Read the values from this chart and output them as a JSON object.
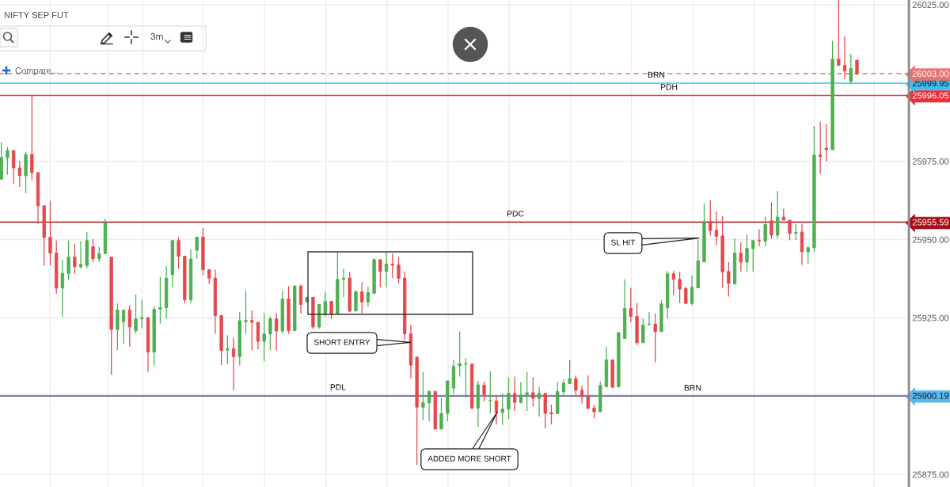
{
  "chart_data": {
    "type": "candlestick",
    "title": "NIFTY SEP FUT",
    "categories": [
      null,
      null,
      null,
      null,
      null,
      null,
      null,
      null,
      null,
      null,
      null,
      null,
      null,
      null,
      null,
      null,
      null,
      null,
      null,
      null,
      null,
      null,
      null,
      null,
      null,
      null,
      null,
      null,
      null,
      null,
      null,
      null,
      null,
      null,
      null,
      null,
      null,
      null,
      null,
      null,
      null,
      null,
      null,
      null,
      null,
      null,
      null,
      null,
      null,
      null,
      null,
      null,
      null,
      null,
      null,
      null,
      null,
      null,
      null,
      null,
      null,
      null,
      null,
      null,
      null,
      null,
      null,
      null,
      null,
      null,
      null,
      null,
      null,
      null,
      null,
      null,
      null,
      null,
      null,
      null,
      null,
      null,
      null,
      null,
      null,
      null,
      null,
      null,
      null,
      null,
      null,
      null,
      null,
      null,
      null,
      null,
      null,
      null,
      null,
      null,
      null,
      null,
      null,
      null,
      null,
      null,
      null,
      null,
      null,
      null,
      null,
      null,
      null,
      null,
      null,
      null,
      null,
      null,
      null,
      null,
      null,
      null,
      null,
      null,
      null,
      null,
      null,
      null,
      null,
      null,
      null,
      null,
      null,
      null,
      null,
      null,
      null,
      null,
      null,
      null,
      null,
      null,
      null,
      null,
      null,
      null,
      null,
      null,
      null
    ],
    "ohlc": [
      [
        25969.3,
        25981.1,
        25969.3,
        25976.2
      ],
      [
        25976.2,
        25979.5,
        25970.7,
        25978.4
      ],
      [
        25978.4,
        25978.8,
        25967.8,
        25972.9
      ],
      [
        25972.9,
        25975.2,
        25966.8,
        25970.4
      ],
      [
        25970.4,
        25978.0,
        25964.8,
        25977.2
      ],
      [
        25977.2,
        25996.0,
        25968.9,
        25971.4
      ],
      [
        25971.4,
        25971.4,
        25955.0,
        25960.8
      ],
      [
        25960.8,
        25960.8,
        25941.7,
        25950.7
      ],
      [
        25950.7,
        25962.4,
        25941.7,
        25945.7
      ],
      [
        25945.7,
        25949.7,
        25932.7,
        25934.5
      ],
      [
        25934.5,
        25943.4,
        25925.3,
        25939.2
      ],
      [
        25939.2,
        25949.7,
        25937.1,
        25944.4
      ],
      [
        25944.4,
        25948.7,
        25939.0,
        25941.3
      ],
      [
        25941.3,
        25949.5,
        25940.8,
        25942.1
      ],
      [
        25941.7,
        25952.5,
        25940.8,
        25949.7
      ],
      [
        25947.7,
        25950.1,
        25942.8,
        25943.9
      ],
      [
        25943.9,
        25947.7,
        25942.8,
        25945.5
      ],
      [
        25945.5,
        25956.7,
        25945.5,
        25955.4
      ],
      [
        25944.4,
        25944.4,
        25906.8,
        25921.3
      ],
      [
        25921.3,
        25929.6,
        25914.7,
        25927.5
      ],
      [
        25923.8,
        25927.5,
        25916.7,
        25927.5
      ],
      [
        25927.5,
        25929.1,
        25915.8,
        25922.1
      ],
      [
        25920.9,
        25932.5,
        25920.0,
        25924.7
      ],
      [
        25924.7,
        25930.8,
        25921.7,
        25925.1
      ],
      [
        25925.1,
        25925.1,
        25907.8,
        25914.1
      ],
      [
        25914.1,
        25928.7,
        25909.8,
        25927.7
      ],
      [
        25927.8,
        25938.1,
        25923.2,
        25928.3
      ],
      [
        25928.3,
        25941.5,
        25924.8,
        25937.7
      ],
      [
        25938.8,
        25949.7,
        25934.8,
        25949.7
      ],
      [
        25949.7,
        25950.8,
        25940.7,
        25944.7
      ],
      [
        25944.7,
        25944.7,
        25929.7,
        25930.8
      ],
      [
        25930.8,
        25946.8,
        25929.7,
        25943.8
      ],
      [
        25946.6,
        25950.8,
        25943.9,
        25950.8
      ],
      [
        25950.8,
        25953.7,
        25938.7,
        25940.4
      ],
      [
        25940.4,
        25940.4,
        25935.8,
        25937.7
      ],
      [
        25937.7,
        25940.4,
        25919.9,
        25925.7
      ],
      [
        25925.7,
        25925.9,
        25909.9,
        25914.6
      ],
      [
        25914.7,
        25919.5,
        25910.1,
        25915.2
      ],
      [
        25915.2,
        25918.6,
        25901.9,
        25912.6
      ],
      [
        25912.6,
        25926.8,
        25909.8,
        25924.1
      ],
      [
        25923.8,
        25933.7,
        25919.9,
        25924.2
      ],
      [
        25924.2,
        25927.4,
        25914.7,
        25923.6
      ],
      [
        25923.6,
        25923.6,
        25915.0,
        25917.5
      ],
      [
        25917.5,
        25926.6,
        25911.2,
        25919.9
      ],
      [
        25919.9,
        25925.5,
        25914.7,
        25924.7
      ],
      [
        25924.7,
        25926.6,
        25914.7,
        25920.8
      ],
      [
        25920.8,
        25933.7,
        25919.9,
        25931.0
      ],
      [
        25931.0,
        25935.2,
        25919.9,
        25920.9
      ],
      [
        25920.9,
        25935.2,
        25920.9,
        25935.2
      ],
      [
        25935.2,
        25935.6,
        25926.4,
        25929.3
      ],
      [
        25930.1,
        25931.6,
        25930.1,
        25931.6
      ],
      [
        25931.6,
        25931.6,
        25921.5,
        25922.1
      ],
      [
        25922.1,
        25929.3,
        25921.5,
        25929.3
      ],
      [
        25926.1,
        25933.3,
        25925.5,
        25930.3
      ],
      [
        25930.3,
        25930.3,
        25924.7,
        25926.2
      ],
      [
        25926.4,
        25946.1,
        25926.4,
        25937.3
      ],
      [
        25937.3,
        25940.7,
        25931.6,
        25937.7
      ],
      [
        25937.7,
        25939.8,
        25926.8,
        25927.2
      ],
      [
        25927.2,
        25933.9,
        25927.2,
        25933.3
      ],
      [
        25933.3,
        25936.5,
        25926.5,
        25930.1
      ],
      [
        25930.1,
        25934.9,
        25928.5,
        25933.1
      ],
      [
        25932.8,
        25944.0,
        25932.8,
        25943.6
      ],
      [
        25943.6,
        25943.6,
        25934.8,
        25939.8
      ],
      [
        25939.8,
        25946.1,
        25934.8,
        25942.2
      ],
      [
        25942.2,
        25945.5,
        25937.7,
        25941.8
      ],
      [
        25941.9,
        25944.4,
        25936.0,
        25937.7
      ],
      [
        25937.7,
        25939.8,
        25917.9,
        25919.9
      ],
      [
        25919.9,
        25922.8,
        25905.7,
        25909.9
      ],
      [
        25912.5,
        25912.5,
        25878.0,
        25896.5
      ],
      [
        25896.5,
        25907.7,
        25892.3,
        25897.9
      ],
      [
        25897.9,
        25901.9,
        25892.0,
        25901.5
      ],
      [
        25901.5,
        25901.5,
        25889.5,
        25889.5
      ],
      [
        25889.5,
        25899.4,
        25889.5,
        25894.5
      ],
      [
        25894.5,
        25904.9,
        25892.0,
        25904.9
      ],
      [
        25902.6,
        25911.6,
        25900.7,
        25909.5
      ],
      [
        25909.7,
        25920.6,
        25906.3,
        25910.4
      ],
      [
        25910.2,
        25912.2,
        25899.6,
        25910.4
      ],
      [
        25910.3,
        25910.3,
        25895.9,
        25896.2
      ],
      [
        25896.2,
        25904.9,
        25890.2,
        25903.6
      ],
      [
        25903.5,
        25904.7,
        25898.3,
        25900.5
      ],
      [
        25898.4,
        25908.0,
        25894.5,
        25898.6
      ],
      [
        25898.5,
        25900.1,
        25891.0,
        25894.8
      ],
      [
        25894.8,
        25900.7,
        25890.8,
        25895.9
      ],
      [
        25895.9,
        25906.0,
        25892.7,
        25900.9
      ],
      [
        25900.9,
        25906.3,
        25895.2,
        25898.0
      ],
      [
        25898.0,
        25904.5,
        25897.7,
        25900.4
      ],
      [
        25900.4,
        25907.7,
        25895.2,
        25901.1
      ],
      [
        25901.1,
        25906.0,
        25896.7,
        25899.3
      ],
      [
        25899.3,
        25903.0,
        25893.5,
        25900.9
      ],
      [
        25900.9,
        25900.9,
        25889.7,
        25894.5
      ],
      [
        25894.7,
        25897.3,
        25891.0,
        25894.3
      ],
      [
        25894.4,
        25904.5,
        25894.4,
        25901.5
      ],
      [
        25901.4,
        25905.3,
        25900.3,
        25904.2
      ],
      [
        25904.0,
        25911.6,
        25904.0,
        25905.6
      ],
      [
        25905.6,
        25906.6,
        25900.3,
        25901.9
      ],
      [
        25901.9,
        25903.5,
        25897.7,
        25899.8
      ],
      [
        25899.8,
        25906.6,
        25895.9,
        25896.1
      ],
      [
        25896.2,
        25897.3,
        25892.9,
        25895.0
      ],
      [
        25895.0,
        25904.6,
        25895.0,
        25903.4
      ],
      [
        25903.0,
        25915.8,
        25903.0,
        25911.6
      ],
      [
        25911.6,
        25911.6,
        25902.8,
        25902.8
      ],
      [
        25903.0,
        25920.3,
        25903.0,
        25920.3
      ],
      [
        25918.4,
        25937.3,
        25918.4,
        25928.0
      ],
      [
        25928.0,
        25934.6,
        25923.6,
        25925.5
      ],
      [
        25925.5,
        25929.7,
        25916.3,
        25917.1
      ],
      [
        25917.1,
        25924.7,
        25917.1,
        25922.7
      ],
      [
        25922.8,
        25926.8,
        25922.8,
        25923.0
      ],
      [
        25923.0,
        25926.4,
        25910.8,
        25920.6
      ],
      [
        25920.6,
        25930.7,
        25920.6,
        25929.5
      ],
      [
        25928.2,
        25940.0,
        25924.8,
        25939.1
      ],
      [
        25939.1,
        25940.0,
        25932.1,
        25937.3
      ],
      [
        25937.3,
        25939.7,
        25929.7,
        25934.2
      ],
      [
        25934.4,
        25934.9,
        25929.6,
        25929.6
      ],
      [
        25929.6,
        25938.6,
        25929.0,
        25934.8
      ],
      [
        25934.6,
        25949.9,
        25934.6,
        25943.2
      ],
      [
        25942.9,
        25961.5,
        25942.9,
        25955.8
      ],
      [
        25955.8,
        25962.5,
        25951.2,
        25952.9
      ],
      [
        25953.0,
        25959.0,
        25948.2,
        25951.0
      ],
      [
        25951.2,
        25957.5,
        25934.6,
        25939.7
      ],
      [
        25939.8,
        25942.8,
        25931.8,
        25936.0
      ],
      [
        25935.8,
        25950.3,
        25935.8,
        25945.7
      ],
      [
        25945.7,
        25949.1,
        25939.8,
        25942.8
      ],
      [
        25942.8,
        25951.6,
        25939.8,
        25947.2
      ],
      [
        25947.1,
        25949.7,
        25939.8,
        25949.7
      ],
      [
        25949.8,
        25953.3,
        25947.8,
        25949.6
      ],
      [
        25949.5,
        25957.3,
        25947.8,
        25954.8
      ],
      [
        25956.0,
        25961.9,
        25950.3,
        25951.4
      ],
      [
        25951.4,
        25965.5,
        25950.3,
        25957.2
      ],
      [
        25957.2,
        25959.8,
        25956.2,
        25956.2
      ],
      [
        25956.2,
        25956.2,
        25949.8,
        25952.0
      ],
      [
        25952.0,
        25955.0,
        25949.9,
        25952.3
      ],
      [
        25952.4,
        25955.0,
        25941.9,
        25946.1
      ],
      [
        25946.1,
        25947.8,
        25942.3,
        25947.4
      ],
      [
        25947.4,
        25986.3,
        25946.1,
        25977.0
      ],
      [
        25977.0,
        25987.6,
        25971.0,
        25976.5
      ],
      [
        25979.2,
        25986.8,
        25975.0,
        25978.7
      ],
      [
        25978.7,
        26013.5,
        25978.7,
        26007.6
      ],
      [
        26007.6,
        26026.5,
        26005.6,
        26005.6
      ],
      [
        26005.6,
        26014.9,
        26001.3,
        26003.8
      ],
      [
        26000.6,
        26009.4,
        25999.8,
        26004.6
      ],
      [
        26007.3,
        26007.3,
        26002.5,
        26003.0
      ],
      null,
      null,
      null,
      null,
      null,
      null,
      null,
      null
    ],
    "colors": [
      "#4caf50",
      "#4caf50",
      "#e5484d",
      "#e5484d",
      "#4caf50",
      "#e5484d",
      "#e5484d",
      "#e5484d",
      "#e5484d",
      "#e5484d",
      "#4caf50",
      "#4caf50",
      "#e5484d",
      "#4caf50",
      "#4caf50",
      "#e5484d",
      "#4caf50",
      "#4caf50",
      "#e5484d",
      "#4caf50",
      "#4caf50",
      "#e5484d",
      "#4caf50",
      "#4caf50",
      "#e5484d",
      "#4caf50",
      "#4caf50",
      "#4caf50",
      "#4caf50",
      "#e5484d",
      "#e5484d",
      "#4caf50",
      "#4caf50",
      "#e5484d",
      "#e5484d",
      "#e5484d",
      "#e5484d",
      "#4caf50",
      "#e5484d",
      "#4caf50",
      "#4caf50",
      "#e5484d",
      "#e5484d",
      "#4caf50",
      "#4caf50",
      "#e5484d",
      "#4caf50",
      "#e5484d",
      "#4caf50",
      "#e5484d",
      "#4caf50",
      "#e5484d",
      "#4caf50",
      "#4caf50",
      "#e5484d",
      "#4caf50",
      "#4caf50",
      "#e5484d",
      "#4caf50",
      "#e5484d",
      "#4caf50",
      "#4caf50",
      "#e5484d",
      "#4caf50",
      "#e5484d",
      "#e5484d",
      "#e5484d",
      "#e5484d",
      "#e5484d",
      "#4caf50",
      "#4caf50",
      "#e5484d",
      "#4caf50",
      "#4caf50",
      "#4caf50",
      "#4caf50",
      "#4caf50",
      "#e5484d",
      "#4caf50",
      "#e5484d",
      "#4caf50",
      "#e5484d",
      "#4caf50",
      "#4caf50",
      "#e5484d",
      "#4caf50",
      "#4caf50",
      "#e5484d",
      "#4caf50",
      "#e5484d",
      "#e5484d",
      "#4caf50",
      "#4caf50",
      "#4caf50",
      "#e5484d",
      "#e5484d",
      "#e5484d",
      "#e5484d",
      "#4caf50",
      "#4caf50",
      "#e5484d",
      "#4caf50",
      "#4caf50",
      "#e5484d",
      "#e5484d",
      "#4caf50",
      "#4caf50",
      "#e5484d",
      "#4caf50",
      "#4caf50",
      "#e5484d",
      "#e5484d",
      "#e5484d",
      "#4caf50",
      "#4caf50",
      "#4caf50",
      "#e5484d",
      "#e5484d",
      "#e5484d",
      "#e5484d",
      "#4caf50",
      "#e5484d",
      "#4caf50",
      "#4caf50",
      "#e5484d",
      "#4caf50",
      "#e5484d",
      "#4caf50",
      "#e5484d",
      "#e5484d",
      "#4caf50",
      "#e5484d",
      "#4caf50",
      "#4caf50",
      "#e5484d",
      "#e5484d",
      "#4caf50",
      "#e5484d",
      "#e5484d",
      "#4caf50",
      "#e5484d",
      null,
      null,
      null,
      null,
      null,
      null,
      null,
      null
    ],
    "ylim": [
      25871,
      26026.5
    ],
    "yticks": [
      {
        "value": 25875,
        "label": "25875.00"
      },
      {
        "value": 25900.19,
        "label": "25900.19"
      },
      {
        "value": 25925,
        "label": "25925.00"
      },
      {
        "value": 25950,
        "label": "25950.00"
      },
      {
        "value": 25955.59,
        "label": "25955.59"
      },
      {
        "value": 25975,
        "label": "25975.00"
      },
      {
        "value": 25996.05,
        "label": "25996.05"
      },
      {
        "value": 25999.95,
        "label": "25999.95"
      },
      {
        "value": 26003.0,
        "label": "26003.00"
      },
      {
        "value": 26025,
        "label": "26025.00"
      }
    ],
    "grid": true,
    "ref_lines": [
      {
        "axis": "y",
        "value": 26003.0,
        "color": "#e57373",
        "line_style": "dashed"
      },
      {
        "axis": "y",
        "value": 25999.95,
        "label": "BRN",
        "color": "#3cc0f0"
      },
      {
        "axis": "y",
        "value": 25996.05,
        "label": "PDH",
        "color": "#e8303a"
      },
      {
        "axis": "y",
        "value": 25955.59,
        "label": "PDC",
        "color": "#a50e1a"
      },
      {
        "axis": "y",
        "value": 25900.19,
        "label": "PDL",
        "color": "#5bb8ea"
      },
      {
        "axis": "y",
        "value": 25900.0,
        "label": "BRN",
        "color": "#7d6a98"
      }
    ],
    "annotations": [
      "SHORT ENTRY",
      "ADDED MORE SHORT",
      "SL HIT",
      "3m",
      "Compare..."
    ]
  }
}
